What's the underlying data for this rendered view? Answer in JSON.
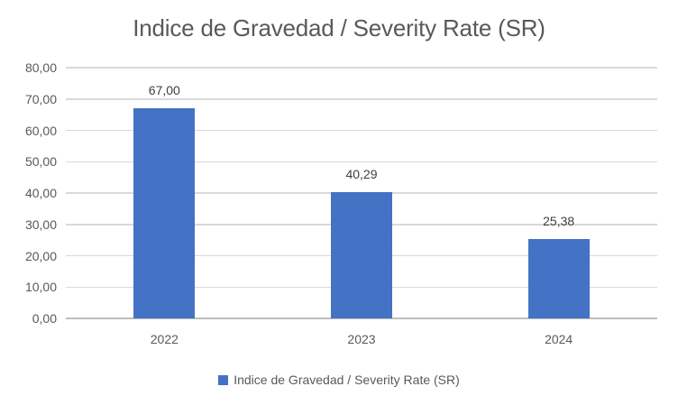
{
  "chart_data": {
    "type": "bar",
    "title": "Indice de Gravedad / Severity Rate (SR)",
    "categories": [
      "2022",
      "2023",
      "2024"
    ],
    "values": [
      67.0,
      40.29,
      25.38
    ],
    "value_labels": [
      "67,00",
      "40,29",
      "25,38"
    ],
    "series_name": "Indice de Gravedad / Severity Rate (SR)",
    "ylim": [
      0,
      80
    ],
    "ytick_step": 10,
    "ytick_labels": [
      "0,00",
      "10,00",
      "20,00",
      "30,00",
      "40,00",
      "50,00",
      "60,00",
      "70,00",
      "80,00"
    ],
    "grid": true,
    "legend_position": "bottom",
    "bar_color": "#4472c4",
    "gridline_color": "#d9d9d9",
    "axis_line_color": "#bfbfbf",
    "title_color": "#595959",
    "tick_label_color": "#595959",
    "data_label_color": "#404040"
  }
}
